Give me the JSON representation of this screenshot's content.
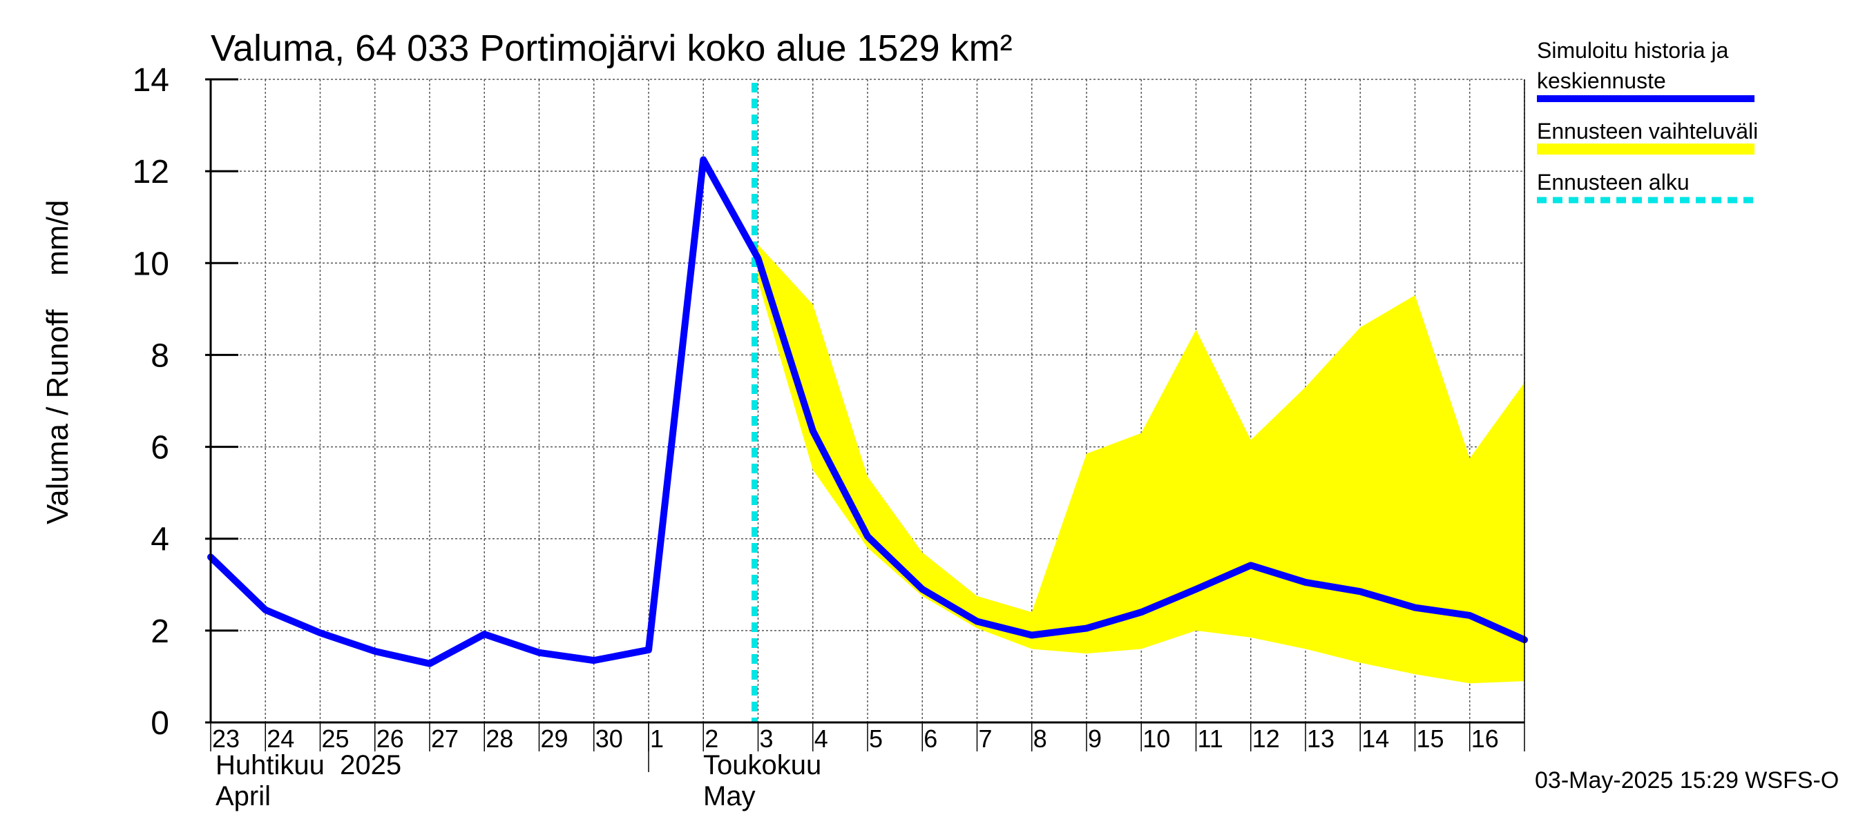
{
  "chart_data": {
    "type": "line",
    "title": "Valuma, 64 033 Portimojärvi koko alue 1529 km²",
    "ylabel": "Valuma / Runoff    mm/d",
    "ylim": [
      0,
      14
    ],
    "yticks": [
      0,
      2,
      4,
      6,
      8,
      10,
      12,
      14
    ],
    "x_tick_labels": [
      "23",
      "24",
      "25",
      "26",
      "27",
      "28",
      "29",
      "30",
      "1",
      "2",
      "3",
      "4",
      "5",
      "6",
      "7",
      "8",
      "9",
      "10",
      "11",
      "12",
      "13",
      "14",
      "15",
      "16"
    ],
    "x_range_days": [
      0,
      24
    ],
    "month_labels": [
      {
        "line1": "Huhtikuu  2025",
        "line2": "April",
        "day_index": 0
      },
      {
        "line1": "Toukokuu",
        "line2": "May",
        "day_index": 9
      }
    ],
    "month_separator_day": 8,
    "forecast_start_day": 10,
    "series": [
      {
        "name": "Simuloitu historia ja keskiennuste",
        "color": "#0000ff",
        "x": [
          0,
          1,
          2,
          3,
          4,
          5,
          6,
          7,
          8,
          9,
          10,
          11,
          12,
          13,
          14,
          15,
          16,
          17,
          18,
          19,
          20,
          21,
          22,
          23,
          24
        ],
        "values": [
          3.6,
          2.45,
          1.95,
          1.55,
          1.28,
          1.92,
          1.52,
          1.35,
          1.58,
          12.25,
          10.1,
          6.35,
          4.05,
          2.9,
          2.2,
          1.9,
          2.05,
          2.4,
          2.9,
          3.42,
          3.05,
          2.85,
          2.5,
          2.33,
          1.8
        ]
      }
    ],
    "band": {
      "name": "Ennusteen vaihteluväli",
      "color": "#ffff00",
      "x": [
        10,
        11,
        12,
        13,
        14,
        15,
        16,
        17,
        18,
        19,
        20,
        21,
        22,
        23,
        24
      ],
      "upper": [
        10.4,
        9.1,
        5.35,
        3.7,
        2.75,
        2.4,
        5.85,
        6.3,
        8.55,
        6.15,
        7.3,
        8.6,
        9.3,
        5.75,
        7.4
      ],
      "lower": [
        9.6,
        5.5,
        3.8,
        2.75,
        2.05,
        1.6,
        1.5,
        1.6,
        2.0,
        1.85,
        1.6,
        1.3,
        1.05,
        0.85,
        0.9
      ]
    },
    "forecast_line": {
      "name": "Ennusteen alku",
      "color": "#00e5e5"
    },
    "grid": true,
    "legend_position": "right"
  },
  "legend": {
    "item1_line1": "Simuloitu historia ja",
    "item1_line2": "keskiennuste",
    "item2": "Ennusteen vaihteluväli",
    "item3": "Ennusteen alku"
  },
  "footer": "03-May-2025 15:29 WSFS-O"
}
